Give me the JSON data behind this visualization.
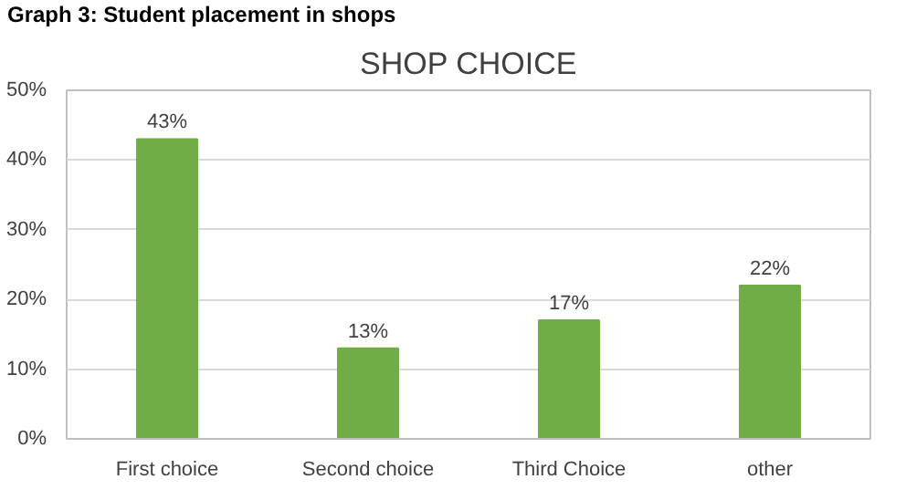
{
  "chart_data": {
    "type": "bar",
    "title": "Graph 3: Student placement in shops",
    "subtitle": "SHOP CHOICE",
    "categories": [
      "First choice",
      "Second choice",
      "Third Choice",
      "other"
    ],
    "values": [
      43,
      13,
      17,
      22
    ],
    "color": "#70ad47",
    "value_labels": [
      "43%",
      "13%",
      "17%",
      "22%"
    ],
    "ylim": [
      0,
      50
    ],
    "yticks": [
      {
        "value": 0,
        "label": "0%"
      },
      {
        "value": 10,
        "label": "10%"
      },
      {
        "value": 20,
        "label": "20%"
      },
      {
        "value": 30,
        "label": "30%"
      },
      {
        "value": 40,
        "label": "40%"
      },
      {
        "value": 50,
        "label": "50%"
      }
    ],
    "grid": "y"
  }
}
